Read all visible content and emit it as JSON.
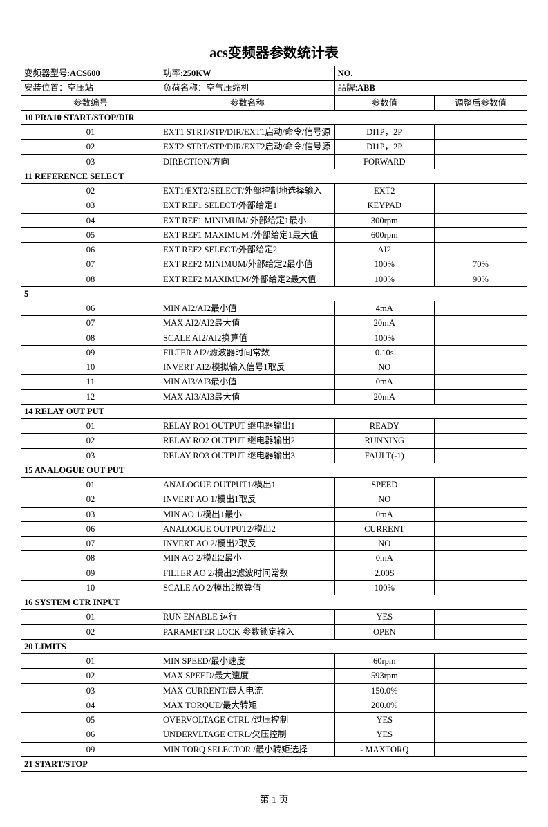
{
  "title": "acs变频器参数统计表",
  "header": {
    "model_label": "变频器型号:",
    "model_value": "ACS600",
    "power_label": "功率:",
    "power_value": "250KW",
    "no_label": "NO.",
    "no_value": "",
    "install_label": "安装位置：",
    "install_value": "空压站",
    "load_label": "负荷名称：",
    "load_value": "空气压缩机",
    "brand_label": "品牌:",
    "brand_value": "ABB"
  },
  "columns": {
    "num": "参数编号",
    "name": "参数名称",
    "val": "参数值",
    "adj": "调整后参数值"
  },
  "sections": [
    {
      "header": "10   PRA10 START/STOP/DIR",
      "rows": [
        {
          "num": "01",
          "name": "EXT1 STRT/STP/DIR/EXT1启动/命令/信号源",
          "val": "DI1P，2P",
          "adj": ""
        },
        {
          "num": "02",
          "name": "EXT2 STRT/STP/DIR/EXT2启动/命令/信号源",
          "val": "DI1P，2P",
          "adj": ""
        },
        {
          "num": "03",
          "name": "DIRECTION/方向",
          "val": "FORWARD",
          "adj": ""
        }
      ]
    },
    {
      "header": "11     REFERENCE SELECT",
      "rows": [
        {
          "num": "02",
          "name": "EXT1/EXT2/SELECT/外部控制地选择输入",
          "val": "EXT2",
          "adj": ""
        },
        {
          "num": "03",
          "name": "EXT REF1 SELECT/外部给定1",
          "val": "KEYPAD",
          "adj": ""
        },
        {
          "num": "04",
          "name": "EXT REF1 MINIMUM/ 外部给定1最小",
          "val": "300rpm",
          "adj": ""
        },
        {
          "num": "05",
          "name": "EXT REF1 MAXIMUM /外部给定1最大值",
          "val": "600rpm",
          "adj": ""
        },
        {
          "num": "06",
          "name": "EXT REF2 SELECT/外部给定2",
          "val": "AI2",
          "adj": ""
        },
        {
          "num": "07",
          "name": "EXT REF2 MINIMUM/外部给定2最小值",
          "val": "100%",
          "adj": "70%"
        },
        {
          "num": "08",
          "name": "EXT REF2 MAXIMUM/外部给定2最大值",
          "val": "100%",
          "adj": "90%"
        }
      ]
    },
    {
      "header": "5",
      "rows": [
        {
          "num": "06",
          "name": "MIN AI2/AI2最小值",
          "val": "4mA",
          "adj": ""
        },
        {
          "num": "07",
          "name": "MAX AI2/AI2最大值",
          "val": "20mA",
          "adj": ""
        },
        {
          "num": "08",
          "name": "SCALE AI2/AI2换算值",
          "val": "100%",
          "adj": ""
        },
        {
          "num": "09",
          "name": "FILTER AI2/滤波器时间常数",
          "val": "0.10s",
          "adj": ""
        },
        {
          "num": "10",
          "name": "INVERT AI2/模拟输入信号1取反",
          "val": "NO",
          "adj": ""
        },
        {
          "num": "11",
          "name": "MIN AI3/AI3最小值",
          "val": "0mA",
          "adj": ""
        },
        {
          "num": "12",
          "name": "MAX AI3/AI3最大值",
          "val": "20mA",
          "adj": ""
        }
      ]
    },
    {
      "header": "14    RELAY OUT PUT",
      "rows": [
        {
          "num": "01",
          "name": "RELAY RO1 OUTPUT 继电器输出1",
          "val": "READY",
          "adj": ""
        },
        {
          "num": "02",
          "name": "RELAY RO2 OUTPUT 继电器输出2",
          "val": "RUNNING",
          "adj": ""
        },
        {
          "num": "03",
          "name": "RELAY RO3 OUTPUT 继电器输出3",
          "val": "FAULT(-1)",
          "adj": ""
        }
      ]
    },
    {
      "header": "15    ANALOGUE OUT PUT",
      "rows": [
        {
          "num": "01",
          "name": "ANALOGUE OUTPUT1/模出1",
          "val": "SPEED",
          "adj": ""
        },
        {
          "num": "02",
          "name": "INVERT AO 1/模出1取反",
          "val": "NO",
          "adj": ""
        },
        {
          "num": "03",
          "name": "MIN  AO 1/模出1最小",
          "val": "0mA",
          "adj": ""
        },
        {
          "num": "06",
          "name": "ANALOGUE OUTPUT2/模出2",
          "val": "CURRENT",
          "adj": ""
        },
        {
          "num": "07",
          "name": "INVERT AO 2/模出2取反",
          "val": "NO",
          "adj": ""
        },
        {
          "num": "08",
          "name": "MIN  AO 2/模出2最小",
          "val": "0mA",
          "adj": ""
        },
        {
          "num": "09",
          "name": "FILTER AO 2/模出2滤波时间常数",
          "val": "2.00S",
          "adj": ""
        },
        {
          "num": "10",
          "name": "SCALE AO 2/模出2换算值",
          "val": "100%",
          "adj": ""
        }
      ]
    },
    {
      "header": "16    SYSTEM CTR INPUT",
      "rows": [
        {
          "num": "01",
          "name": "RUN ENABLE 运行",
          "val": "YES",
          "adj": ""
        },
        {
          "num": "02",
          "name": "PARAMETER LOCK 参数锁定输入",
          "val": "OPEN",
          "adj": ""
        }
      ]
    },
    {
      "header": "20    LIMITS",
      "rows": [
        {
          "num": "01",
          "name": "MIN SPEED/最小速度",
          "val": "60rpm",
          "adj": ""
        },
        {
          "num": "02",
          "name": "MAX SPEED/最大速度",
          "val": "593rpm",
          "adj": ""
        },
        {
          "num": "03",
          "name": "MAX CURRENT/最大电流",
          "val": "150.0%",
          "adj": ""
        },
        {
          "num": "04",
          "name": "MAX TORQUE/最大转矩",
          "val": "200.0%",
          "adj": ""
        },
        {
          "num": "05",
          "name": "OVERVOLTAGE CTRL /过压控制",
          "val": "YES",
          "adj": ""
        },
        {
          "num": "06",
          "name": "UNDERVLTAGE CTRL/欠压控制",
          "val": "YES",
          "adj": ""
        },
        {
          "num": "09",
          "name": "MIN TORQ SELECTOR /最小转矩选择",
          "val": "- MAXTORQ",
          "adj": ""
        }
      ]
    },
    {
      "header": "21    START/STOP",
      "rows": []
    }
  ],
  "footer": "第 1 页"
}
